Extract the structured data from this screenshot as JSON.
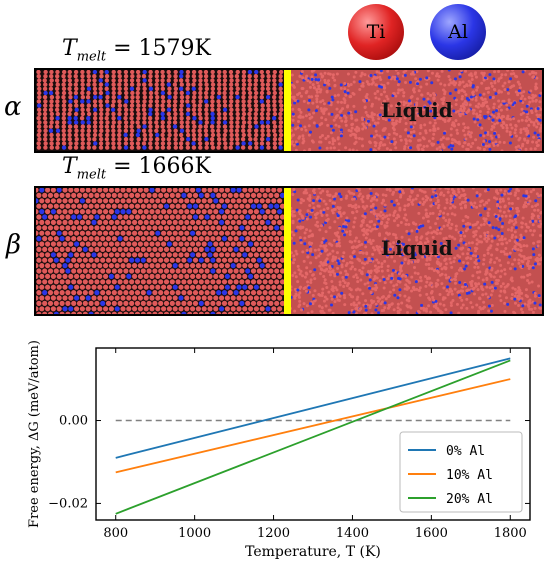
{
  "atoms": {
    "ti": {
      "label": "Ti",
      "color": "#e02424"
    },
    "al": {
      "label": "Al",
      "color": "#2b36e6"
    }
  },
  "panels": [
    {
      "phase": "α",
      "tmelt_label": "T",
      "tmelt_sub": "melt",
      "tmelt_value": " = 1579K",
      "liquid_label": "Liquid"
    },
    {
      "phase": "β",
      "tmelt_label": "T",
      "tmelt_sub": "melt",
      "tmelt_value": " = 1666K",
      "liquid_label": "Liquid"
    }
  ],
  "interface_color": "#ffff00",
  "chart_data": {
    "type": "line",
    "xlabel": "Temperature, T (K)",
    "ylabel": "Free energy, ΔG (meV/atom)",
    "xlim": [
      750,
      1850
    ],
    "ylim": [
      -0.024,
      0.0175
    ],
    "xticks": [
      800,
      1000,
      1200,
      1400,
      1600,
      1800
    ],
    "yticks": [
      -0.02,
      0.0
    ],
    "ytick_labels": [
      "−0.02",
      "0.00"
    ],
    "reference_line": {
      "y": 0.0,
      "style": "dashed",
      "color": "#808080"
    },
    "legend": {
      "position": "bottom-right",
      "entries": [
        "0% Al",
        "10% Al",
        "20% Al"
      ]
    },
    "series": [
      {
        "name": "0% Al",
        "color": "#1f77b4",
        "x": [
          800,
          1800
        ],
        "y": [
          -0.009,
          0.015
        ]
      },
      {
        "name": "10% Al",
        "color": "#ff7f0e",
        "x": [
          800,
          1800
        ],
        "y": [
          -0.0125,
          0.01
        ]
      },
      {
        "name": "20% Al",
        "color": "#2ca02c",
        "x": [
          800,
          1800
        ],
        "y": [
          -0.0225,
          0.0145
        ]
      }
    ]
  }
}
